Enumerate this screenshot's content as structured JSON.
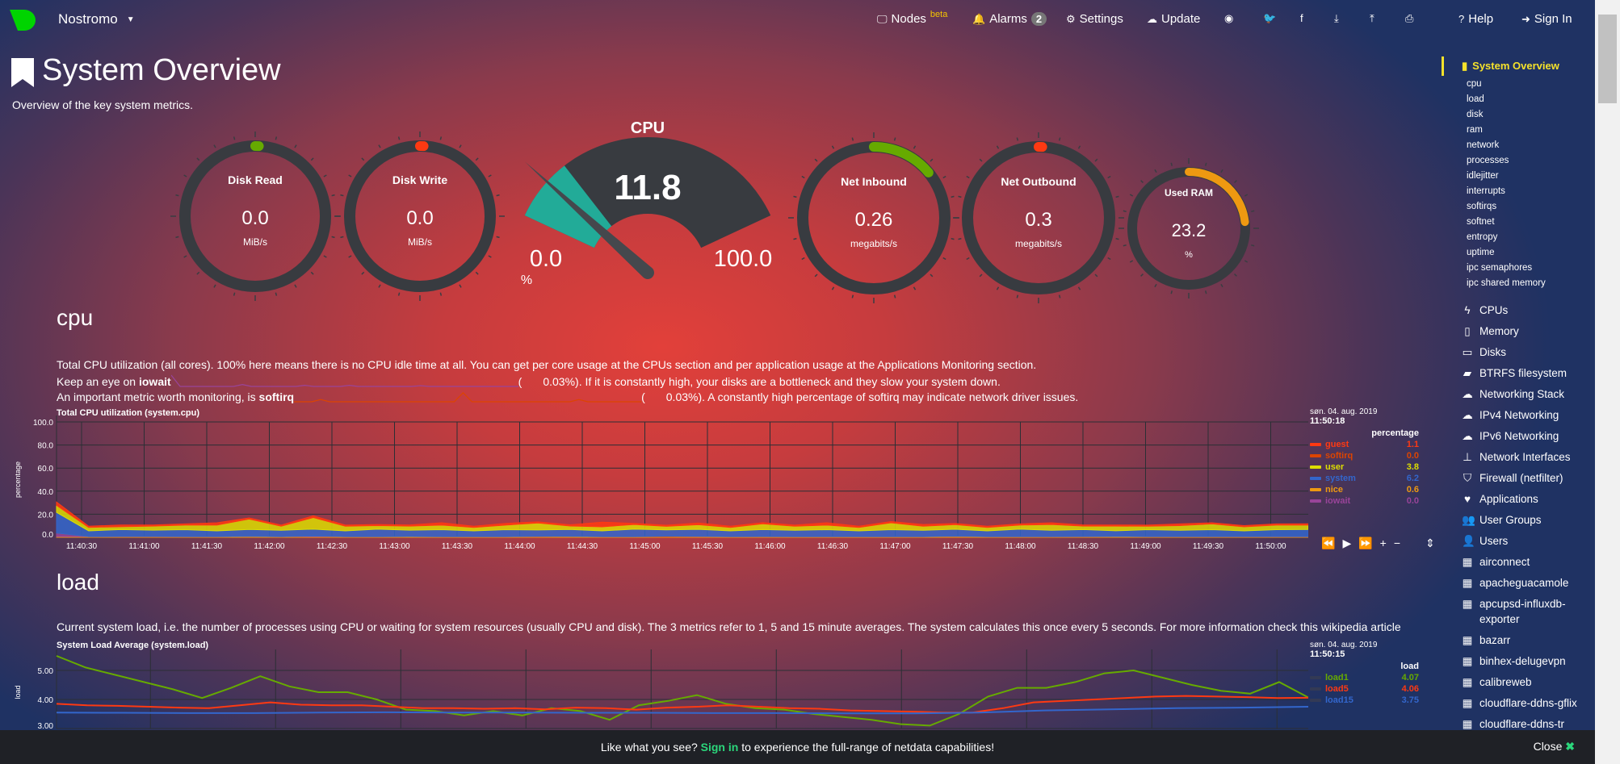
{
  "header": {
    "brand": "Nostromo",
    "brand_color": "#00d400",
    "items": [
      {
        "label": "Nodes",
        "icon": "monitor-icon",
        "badge": "beta"
      },
      {
        "label": "Alarms",
        "icon": "bell-icon",
        "count": "2"
      },
      {
        "label": "Settings",
        "icon": "gear-icon"
      },
      {
        "label": "Update",
        "icon": "cloud-download-icon"
      },
      {
        "label": "",
        "icon": "github-icon"
      },
      {
        "label": "",
        "icon": "twitter-icon"
      },
      {
        "label": "",
        "icon": "facebook-icon"
      },
      {
        "label": "",
        "icon": "download-icon"
      },
      {
        "label": "",
        "icon": "upload-icon"
      },
      {
        "label": "",
        "icon": "print-icon"
      },
      {
        "label": "Help",
        "icon": "question-circle-icon"
      },
      {
        "label": "Sign In",
        "icon": "sign-in-icon"
      }
    ]
  },
  "page": {
    "title": "System Overview",
    "subtitle": "Overview of the key system metrics."
  },
  "gauges": {
    "disk_read": {
      "title": "Disk Read",
      "value": "0.0",
      "unit": "MiB/s",
      "fill": 0.0,
      "color": "#66aa00"
    },
    "disk_write": {
      "title": "Disk Write",
      "value": "0.0",
      "unit": "MiB/s",
      "fill": 0.0,
      "color": "#fe3912"
    },
    "cpu": {
      "title": "CPU",
      "value": "11.8",
      "min": "0.0",
      "max": "100.0",
      "unit": "%",
      "fill": 0.118,
      "color": "#22ab98"
    },
    "net_in": {
      "title": "Net Inbound",
      "value": "0.26",
      "unit": "megabits/s",
      "fill": 0.14,
      "color": "#66aa00"
    },
    "net_out": {
      "title": "Net Outbound",
      "value": "0.3",
      "unit": "megabits/s",
      "fill": 0.0,
      "color": "#fe3912"
    },
    "ram": {
      "title": "Used RAM",
      "value": "23.2",
      "unit": "%",
      "fill": 0.232,
      "color": "#ee9911"
    }
  },
  "cpu_section": {
    "heading": "cpu",
    "line1": "Total CPU utilization (all cores). 100% here means there is no CPU idle time at all. You can get per core usage at the CPUs section and per application usage at the Applications Monitoring section.",
    "line2a": "Keep an eye on ",
    "line2b": "iowait",
    "line2c": "(",
    "line2d": "0.03%",
    "line2e": "). If it is constantly high, your disks are a bottleneck and they slow your system down.",
    "line3a": "An important metric worth monitoring, is ",
    "line3b": "softirq",
    "line3c": "(",
    "line3d": "0.03%",
    "line3e": "). A constantly high percentage of softirq may indicate network driver issues."
  },
  "load_section": {
    "heading": "load",
    "line1": "Current system load, i.e. the number of processes using CPU or waiting for system resources (usually CPU and disk). The 3 metrics refer to 1, 5 and 15 minute averages. The system calculates this once every 5 seconds. For more information check this wikipedia article"
  },
  "chart_data": [
    {
      "type": "area",
      "stacked": true,
      "title": "Total CPU utilization (system.cpu)",
      "ylabel": "percentage",
      "ylim": [
        0,
        100
      ],
      "yticks": [
        "100.0",
        "80.0",
        "60.0",
        "40.0",
        "20.0",
        "0.0"
      ],
      "xlim": [
        "11:40:18",
        "11:50:18"
      ],
      "xticks": [
        "11:40:30",
        "11:41:00",
        "11:41:30",
        "11:42:00",
        "11:42:30",
        "11:43:00",
        "11:43:30",
        "11:44:00",
        "11:44:30",
        "11:45:00",
        "11:45:30",
        "11:46:00",
        "11:46:30",
        "11:47:00",
        "11:47:30",
        "11:48:00",
        "11:48:30",
        "11:49:00",
        "11:49:30",
        "11:50:00"
      ],
      "date": "søn. 04. aug. 2019",
      "time": "11:50:18",
      "legend_title": "percentage",
      "grid": true,
      "series": [
        {
          "name": "nice",
          "color": "#ee9911",
          "last": "0.6",
          "values": [
            0.6,
            0.6,
            0.7,
            0.6,
            0.6,
            0.6,
            0.8,
            0.6,
            0.6,
            0.6,
            0.6,
            0.7,
            0.6,
            0.6,
            0.6,
            0.6,
            0.8,
            0.6,
            0.6,
            0.6,
            0.6,
            0.6,
            0.7,
            0.6,
            0.6,
            0.6,
            0.6,
            0.6,
            0.8,
            0.6,
            0.6,
            0.6,
            0.6,
            0.7,
            0.6,
            0.6,
            0.6,
            0.6,
            0.6,
            0.6
          ]
        },
        {
          "name": "iowait",
          "color": "#994499",
          "last": "0.0",
          "values": [
            3,
            0,
            0,
            0,
            0,
            0,
            0,
            0,
            0.5,
            0,
            0,
            0,
            0,
            0,
            0,
            0.3,
            0,
            0,
            0,
            0,
            0.3,
            0,
            0,
            0,
            0,
            0,
            0,
            0,
            0.2,
            0,
            0,
            0,
            0,
            0,
            0,
            0,
            0,
            0,
            0,
            0
          ]
        },
        {
          "name": "softirq",
          "color": "#dd4400",
          "last": "0.0",
          "values": [
            0,
            0,
            0,
            0.1,
            0,
            0,
            0,
            0,
            0,
            0,
            0,
            0,
            0,
            0,
            0,
            0,
            0,
            0,
            0,
            0.4,
            0,
            0,
            0,
            0,
            0,
            0,
            0,
            0,
            0,
            0,
            0,
            0,
            0.1,
            0,
            0,
            0,
            0,
            0,
            0,
            0
          ]
        },
        {
          "name": "system",
          "color": "#3366cc",
          "last": "6.2",
          "values": [
            18,
            5,
            6,
            5.5,
            6,
            5,
            6,
            5.5,
            6,
            5,
            6.5,
            5.5,
            6,
            5,
            6,
            5.5,
            6,
            5,
            6.5,
            5.5,
            6,
            5,
            6,
            5.5,
            6,
            5,
            6,
            5.5,
            6,
            5,
            6.5,
            5.5,
            6,
            5,
            6,
            5.5,
            6,
            5,
            6,
            6.2
          ]
        },
        {
          "name": "user",
          "color": "#dddd00",
          "last": "3.8",
          "values": [
            6,
            3,
            2.5,
            3.5,
            4,
            5,
            9,
            3.5,
            10,
            4,
            3,
            3.5,
            4,
            3,
            4,
            6,
            3,
            3.5,
            4,
            3,
            4,
            3,
            5,
            3.5,
            4,
            3,
            6,
            3.5,
            4,
            3,
            3.5,
            5,
            3,
            4,
            3,
            4,
            5,
            3.5,
            4,
            3.8
          ]
        },
        {
          "name": "guest",
          "color": "#ff3912",
          "last": "1.1",
          "values": [
            3,
            1,
            1.5,
            1,
            1,
            2,
            1,
            1,
            1.5,
            1,
            1,
            1,
            2,
            1,
            1.5,
            1,
            1,
            4,
            1,
            1,
            1.5,
            1,
            1,
            1,
            2,
            1,
            1,
            1.5,
            1,
            1,
            1,
            1.5,
            1,
            1,
            1,
            1.5,
            1,
            1,
            1,
            1.1
          ]
        }
      ]
    },
    {
      "type": "line",
      "title": "System Load Average (system.load)",
      "ylabel": "load",
      "ylim": [
        3,
        5.5
      ],
      "yticks": [
        "5.00",
        "4.00",
        "3.00"
      ],
      "xlim": [
        "11:40:15",
        "11:50:15"
      ],
      "date": "søn. 04. aug. 2019",
      "time": "11:50:15",
      "legend_title": "load",
      "grid": true,
      "series": [
        {
          "name": "load1",
          "color": "#66aa00",
          "last": "4.07",
          "values": [
            5.5,
            5.1,
            4.85,
            4.6,
            4.35,
            4.05,
            4.4,
            4.8,
            4.45,
            4.25,
            4.25,
            4.0,
            3.65,
            3.6,
            3.45,
            3.6,
            3.45,
            3.7,
            3.6,
            3.3,
            3.8,
            3.95,
            4.15,
            3.85,
            3.7,
            3.65,
            3.5,
            3.4,
            3.3,
            3.15,
            3.1,
            3.5,
            4.1,
            4.4,
            4.4,
            4.6,
            4.9,
            5.0,
            4.75,
            4.5,
            4.3,
            4.2,
            4.6,
            4.07
          ]
        },
        {
          "name": "load5",
          "color": "#fe3912",
          "last": "4.06",
          "values": [
            3.85,
            3.8,
            3.78,
            3.75,
            3.72,
            3.7,
            3.8,
            3.9,
            3.82,
            3.8,
            3.8,
            3.75,
            3.7,
            3.7,
            3.68,
            3.7,
            3.66,
            3.72,
            3.7,
            3.65,
            3.72,
            3.75,
            3.8,
            3.75,
            3.7,
            3.68,
            3.62,
            3.6,
            3.58,
            3.55,
            3.55,
            3.7,
            3.9,
            3.95,
            4.0,
            4.05,
            4.1,
            4.12,
            4.1,
            4.08,
            4.05,
            4.06
          ]
        },
        {
          "name": "load15",
          "color": "#3366cc",
          "last": "3.75",
          "values": [
            3.55,
            3.54,
            3.53,
            3.53,
            3.55,
            3.56,
            3.55,
            3.55,
            3.54,
            3.54,
            3.53,
            3.53,
            3.52,
            3.52,
            3.55,
            3.62,
            3.66,
            3.7,
            3.72,
            3.75
          ]
        }
      ]
    }
  ],
  "chart_controls": [
    "rewind-icon",
    "play-icon",
    "fast-forward-icon",
    "zoom-in-icon",
    "zoom-out-icon",
    "resize-icon"
  ],
  "sidebar": {
    "active": "System Overview",
    "sub": [
      "cpu",
      "load",
      "disk",
      "ram",
      "network",
      "processes",
      "idlejitter",
      "interrupts",
      "softirqs",
      "softnet",
      "entropy",
      "uptime",
      "ipc semaphores",
      "ipc shared memory"
    ],
    "items": [
      {
        "label": "CPUs",
        "icon": "bolt-icon"
      },
      {
        "label": "Memory",
        "icon": "memory-icon"
      },
      {
        "label": "Disks",
        "icon": "hdd-icon"
      },
      {
        "label": "BTRFS filesystem",
        "icon": "folder-icon"
      },
      {
        "label": "Networking Stack",
        "icon": "cloud-icon"
      },
      {
        "label": "IPv4 Networking",
        "icon": "cloud-icon"
      },
      {
        "label": "IPv6 Networking",
        "icon": "cloud-icon"
      },
      {
        "label": "Network Interfaces",
        "icon": "sitemap-icon"
      },
      {
        "label": "Firewall (netfilter)",
        "icon": "shield-icon"
      },
      {
        "label": "Applications",
        "icon": "heartbeat-icon"
      },
      {
        "label": "User Groups",
        "icon": "users-icon"
      },
      {
        "label": "Users",
        "icon": "user-icon"
      },
      {
        "label": "airconnect",
        "icon": "grid-icon"
      },
      {
        "label": "apacheguacamole",
        "icon": "grid-icon"
      },
      {
        "label": "apcupsd-influxdb-exporter",
        "icon": "grid-icon"
      },
      {
        "label": "bazarr",
        "icon": "grid-icon"
      },
      {
        "label": "binhex-delugevpn",
        "icon": "grid-icon"
      },
      {
        "label": "calibreweb",
        "icon": "grid-icon"
      },
      {
        "label": "cloudflare-ddns-gflix",
        "icon": "grid-icon"
      },
      {
        "label": "cloudflare-ddns-tr",
        "icon": "grid-icon"
      }
    ]
  },
  "footer": {
    "pre": "Like what you see? ",
    "link": "Sign in",
    "post": " to experience the full-range of netdata capabilities!",
    "close": "Close"
  }
}
